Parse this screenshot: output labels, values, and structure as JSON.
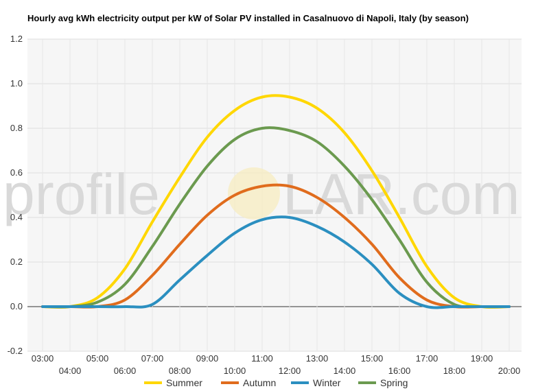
{
  "chart_data": {
    "type": "line",
    "title": "Hourly avg kWh electricity output per kW of Solar PV installed in Casalnuovo di Napoli, Italy (by season)",
    "xlabel": "",
    "ylabel": "",
    "ylim": [
      -0.2,
      1.2
    ],
    "yticks": [
      "-0.2",
      "0.0",
      "0.2",
      "0.4",
      "0.6",
      "0.8",
      "1.0",
      "1.2"
    ],
    "x": [
      "03:00",
      "04:00",
      "05:00",
      "06:00",
      "07:00",
      "08:00",
      "09:00",
      "10:00",
      "11:00",
      "12:00",
      "13:00",
      "14:00",
      "15:00",
      "16:00",
      "17:00",
      "18:00",
      "19:00",
      "20:00"
    ],
    "series": [
      {
        "name": "Summer",
        "color": "#ffd700",
        "values": [
          0.0,
          0.0,
          0.04,
          0.17,
          0.38,
          0.58,
          0.76,
          0.88,
          0.94,
          0.94,
          0.89,
          0.78,
          0.61,
          0.4,
          0.18,
          0.04,
          0.0,
          0.0
        ]
      },
      {
        "name": "Autumn",
        "color": "#e06c1d",
        "values": [
          0.0,
          0.0,
          0.0,
          0.03,
          0.14,
          0.28,
          0.41,
          0.5,
          0.54,
          0.54,
          0.49,
          0.4,
          0.28,
          0.13,
          0.03,
          0.0,
          0.0,
          0.0
        ]
      },
      {
        "name": "Winter",
        "color": "#2b8fc0",
        "values": [
          0.0,
          0.0,
          0.0,
          0.0,
          0.01,
          0.12,
          0.23,
          0.33,
          0.39,
          0.4,
          0.36,
          0.29,
          0.19,
          0.06,
          0.0,
          0.0,
          0.0,
          0.0
        ]
      },
      {
        "name": "Spring",
        "color": "#6b9a4f",
        "values": [
          0.0,
          0.0,
          0.02,
          0.1,
          0.27,
          0.46,
          0.63,
          0.75,
          0.8,
          0.79,
          0.74,
          0.63,
          0.48,
          0.3,
          0.11,
          0.01,
          0.0,
          0.0
        ]
      }
    ],
    "legend": "bottom",
    "grid": true
  },
  "watermark": {
    "text_left": "profile",
    "text_right": "LAR.com"
  }
}
